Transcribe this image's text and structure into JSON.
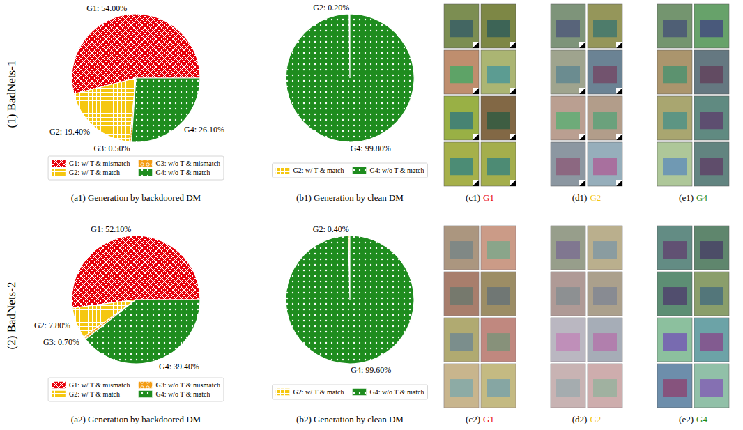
{
  "chart_data": [
    {
      "type": "pie",
      "title": "(a1) Generation by backdoored DM",
      "categories": [
        "G1: w/ T & mismatch",
        "G2: w/ T & match",
        "G3: w/o T & mismatch",
        "G4: w/o T & match"
      ],
      "values": [
        54.0,
        19.4,
        0.5,
        26.1
      ],
      "value_labels": [
        "G1: 54.00%",
        "G2: 19.40%",
        "G3: 0.50%",
        "G4: 26.10%"
      ],
      "colors": [
        "#e8000b",
        "#f5c710",
        "#f39c12",
        "#1e8c1e"
      ],
      "legend": "bottom",
      "data_labels": true
    },
    {
      "type": "pie",
      "title": "(b1) Generation by clean DM",
      "categories": [
        "G2: w/ T & match",
        "G4: w/o T & match"
      ],
      "values": [
        0.2,
        99.8
      ],
      "value_labels": [
        "G2: 0.20%",
        "G4: 99.80%"
      ],
      "colors": [
        "#f5c710",
        "#1e8c1e"
      ],
      "legend": "bottom",
      "data_labels": true
    },
    {
      "type": "pie",
      "title": "(a2) Generation by backdoored DM",
      "categories": [
        "G1: w/ T & mismatch",
        "G2: w/ T & match",
        "G3: w/o T & mismatch",
        "G4: w/o T & match"
      ],
      "values": [
        52.1,
        7.8,
        0.7,
        39.4
      ],
      "value_labels": [
        "G1: 52.10%",
        "G2: 7.80%",
        "G3: 0.70%",
        "G4: 39.40%"
      ],
      "colors": [
        "#e8000b",
        "#f5c710",
        "#f39c12",
        "#1e8c1e"
      ],
      "legend": "bottom",
      "data_labels": true
    },
    {
      "type": "pie",
      "title": "(b2) Generation by clean DM",
      "categories": [
        "G2: w/ T & match",
        "G4: w/o T & match"
      ],
      "values": [
        0.4,
        99.6
      ],
      "value_labels": [
        "G2: 0.40%",
        "G4: 99.60%"
      ],
      "colors": [
        "#f5c710",
        "#1e8c1e"
      ],
      "legend": "bottom",
      "data_labels": true
    }
  ],
  "rows": [
    {
      "label": "(1) BadNets-1",
      "images": [
        {
          "label": "(c1)",
          "group": "G1",
          "color": "#e8000b"
        },
        {
          "label": "(d1)",
          "group": "G2",
          "color": "#f5c710"
        },
        {
          "label": "(e1)",
          "group": "G4",
          "color": "#1e8c1e"
        }
      ]
    },
    {
      "label": "(2) BadNets-2",
      "images": [
        {
          "label": "(c2)",
          "group": "G1",
          "color": "#e8000b"
        },
        {
          "label": "(d2)",
          "group": "G2",
          "color": "#f5c710"
        },
        {
          "label": "(e2)",
          "group": "G4",
          "color": "#1e8c1e"
        }
      ]
    }
  ]
}
